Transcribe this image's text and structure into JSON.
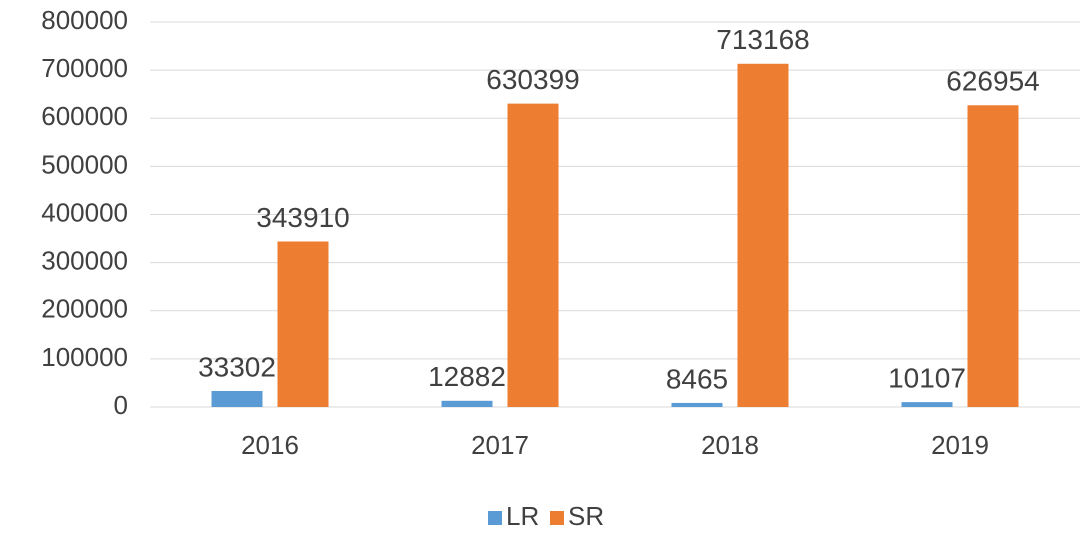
{
  "chart_data": {
    "type": "bar",
    "categories": [
      "2016",
      "2017",
      "2018",
      "2019"
    ],
    "series": [
      {
        "name": "LR",
        "color": "#5b9bd5",
        "values": [
          33302,
          12882,
          8465,
          10107
        ]
      },
      {
        "name": "SR",
        "color": "#ed7d31",
        "values": [
          343910,
          630399,
          713168,
          626954
        ]
      }
    ],
    "ylim": [
      0,
      800000
    ],
    "yticks": [
      0,
      100000,
      200000,
      300000,
      400000,
      500000,
      600000,
      700000,
      800000
    ],
    "grid": true,
    "legend": "bottom"
  }
}
